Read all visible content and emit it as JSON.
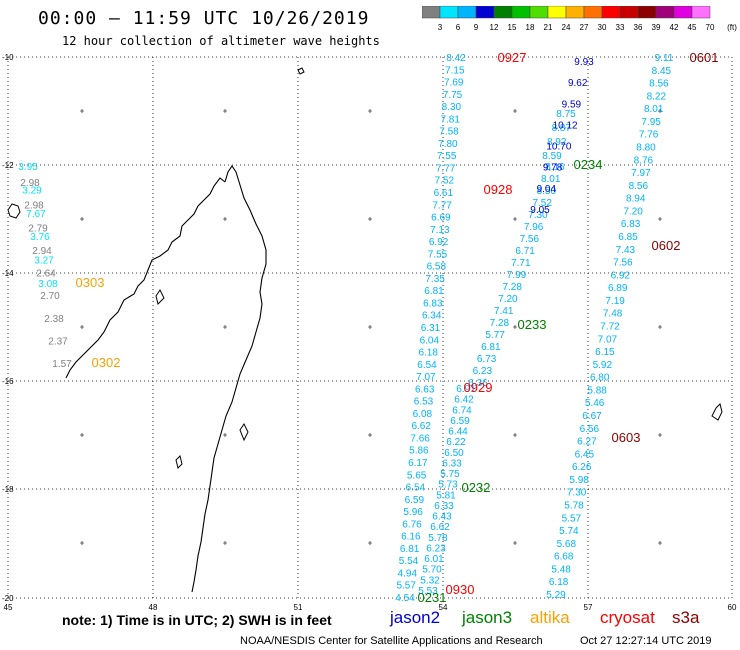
{
  "header": {
    "title": "00:00 – 11:59 UTC 10/26/2019",
    "subtitle": "12 hour collection of altimeter wave heights"
  },
  "legend": {
    "colors": [
      "#808080",
      "#00e5ff",
      "#00b4ff",
      "#0000d0",
      "#008000",
      "#00c000",
      "#50dd00",
      "#ffff00",
      "#ffb000",
      "#ff7000",
      "#ff0000",
      "#c80000",
      "#8b0000",
      "#a0007a",
      "#e000e0",
      "#ff70ff"
    ],
    "labels": [
      "3",
      "6",
      "9",
      "12",
      "15",
      "18",
      "21",
      "24",
      "27",
      "30",
      "33",
      "36",
      "39",
      "42",
      "45",
      "70",
      "(ft)"
    ]
  },
  "axes": {
    "lat_labels": [
      "-10",
      "-12",
      "-14",
      "-16",
      "-18",
      "-20"
    ],
    "lon_labels": [
      "45",
      "48",
      "51",
      "54",
      "57",
      "60"
    ]
  },
  "tracks": [
    {
      "color": "#00b4ff",
      "values": [
        "8.42",
        "7.15",
        "7.69",
        "7.75",
        "8.30",
        "7.81",
        "7.58",
        "7.80",
        "7.55",
        "7.77",
        "7.52",
        "6.61",
        "7.77",
        "6.69",
        "7.13",
        "6.92",
        "7.55",
        "6.58",
        "7.35",
        "6.81",
        "6.83",
        "6.34",
        "6.31",
        "6.04",
        "6.18",
        "6.54",
        "7.07",
        "6.63",
        "6.53",
        "6.08",
        "6.62",
        "7.66",
        "5.86",
        "6.17",
        "5.65",
        "6.54",
        "6.59",
        "5.96",
        "6.76",
        "6.16",
        "6.81",
        "5.54",
        "4.94",
        "5.57",
        "4.54"
      ]
    },
    {
      "color": "#00b4ff",
      "values": [
        "6.91",
        "6.42",
        "6.74",
        "6.59",
        "6.44",
        "6.22",
        "6.50",
        "6.33",
        "5.75",
        "5.73",
        "5.81",
        "6.33",
        "6.43",
        "6.62",
        "5.78",
        "6.23",
        "6.01",
        "5.70",
        "5.32",
        "5.53"
      ]
    },
    {
      "color": "#00b4ff",
      "values": [
        "8.16",
        "8.01",
        "8.50",
        "7.52",
        "7.30",
        "7.96",
        "7.56",
        "6.71",
        "7.71",
        "7.99",
        "7.28",
        "7.20",
        "7.41",
        "7.28",
        "5.77",
        "6.81",
        "6.73",
        "6.23",
        "6.36"
      ]
    },
    {
      "color": "#00b4ff",
      "values": [
        "8.75",
        "8.87",
        "8.92",
        "8.59"
      ]
    },
    {
      "color": "#0000d0",
      "values": [
        "9.93",
        "9.62",
        "9.59",
        "10.12",
        "10.70",
        "9.78",
        "9.04",
        "9.05"
      ]
    },
    {
      "color": "#00b4ff",
      "values": [
        "9.11",
        "8.45",
        "8.56",
        "8.22",
        "8.01",
        "7.95",
        "7.76",
        "8.80",
        "8.76",
        "7.97",
        "8.56",
        "8.94",
        "7.20",
        "6.83",
        "6.85",
        "7.43",
        "7.56",
        "6.92",
        "6.89",
        "7.19",
        "7.48",
        "7.72",
        "7.07",
        "6.15",
        "5.92",
        "6.80",
        "5.88",
        "5.46",
        "6.67",
        "6.56",
        "6.27",
        "6.45",
        "6.26",
        "5.98",
        "7.30",
        "5.78",
        "5.57",
        "5.74",
        "5.68",
        "6.68",
        "5.48",
        "6.18",
        "5.29"
      ]
    },
    {
      "color": "#00e5ff",
      "values": [
        "3.95",
        "3.29",
        "7.67",
        "3.76",
        "3.27",
        "3.08"
      ]
    },
    {
      "color": "#808080",
      "values": [
        "2.98",
        "2.98",
        "2.79",
        "2.94",
        "2.64",
        "2.70",
        "2.38",
        "2.37",
        "1.57"
      ]
    }
  ],
  "pass_labels": [
    {
      "text": "0927",
      "color": "#ff0000"
    },
    {
      "text": "0601",
      "color": "#8b0000"
    },
    {
      "text": "0234",
      "color": "#008000"
    },
    {
      "text": "0928",
      "color": "#ff0000"
    },
    {
      "text": "0602",
      "color": "#8b0000"
    },
    {
      "text": "0303",
      "color": "#ffa000"
    },
    {
      "text": "0233",
      "color": "#008000"
    },
    {
      "text": "0302",
      "color": "#ffa000"
    },
    {
      "text": "0929",
      "color": "#ff0000"
    },
    {
      "text": "0603",
      "color": "#8b0000"
    },
    {
      "text": "0232",
      "color": "#008000"
    },
    {
      "text": "0930",
      "color": "#ff0000"
    },
    {
      "text": "0231",
      "color": "#008000"
    }
  ],
  "footer": {
    "note": "note: 1) Time is in UTC; 2) SWH is in feet",
    "satellites": [
      {
        "name": "jason2",
        "color": "#0000d0"
      },
      {
        "name": "jason3",
        "color": "#008000"
      },
      {
        "name": "altika",
        "color": "#ffa000"
      },
      {
        "name": "cryosat",
        "color": "#ff0000"
      },
      {
        "name": "s3a",
        "color": "#8b0000"
      }
    ],
    "credit": "NOAA/NESDIS Center for Satellite Applications and Research",
    "generated": "Oct 27 12:27:14 UTC 2019"
  }
}
